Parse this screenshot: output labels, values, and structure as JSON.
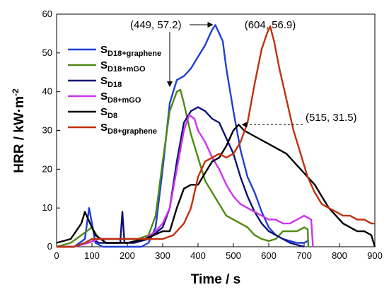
{
  "chart_data": {
    "type": "line",
    "xlabel": "Time / s",
    "ylabel_main": "HRR / kW",
    "ylabel_dot": "·",
    "ylabel_unit": "m",
    "ylabel_exp": "-2",
    "xlim": [
      0,
      900
    ],
    "ylim": [
      0,
      60
    ],
    "xticks": [
      0,
      100,
      200,
      300,
      400,
      500,
      600,
      700,
      800,
      900
    ],
    "yticks": [
      0,
      10,
      20,
      30,
      40,
      50,
      60
    ],
    "grid": false,
    "legend_position": "top-left",
    "series": [
      {
        "name_main": "S",
        "name_sub": "D18+graphene",
        "color": "#1f3fd6",
        "points": [
          [
            0,
            0
          ],
          [
            50,
            0
          ],
          [
            80,
            2
          ],
          [
            92,
            10
          ],
          [
            100,
            6
          ],
          [
            110,
            1
          ],
          [
            130,
            0
          ],
          [
            200,
            0
          ],
          [
            240,
            0
          ],
          [
            260,
            1
          ],
          [
            280,
            5
          ],
          [
            300,
            20
          ],
          [
            320,
            37
          ],
          [
            340,
            43
          ],
          [
            360,
            44
          ],
          [
            380,
            46
          ],
          [
            400,
            49
          ],
          [
            420,
            52
          ],
          [
            440,
            56
          ],
          [
            449,
            57.2
          ],
          [
            460,
            55
          ],
          [
            470,
            53
          ],
          [
            480,
            46
          ],
          [
            500,
            35
          ],
          [
            520,
            25
          ],
          [
            540,
            18
          ],
          [
            560,
            14
          ],
          [
            580,
            9
          ],
          [
            600,
            5
          ],
          [
            620,
            3
          ],
          [
            640,
            2
          ],
          [
            660,
            1.5
          ],
          [
            680,
            1
          ],
          [
            700,
            1
          ],
          [
            710,
            1.5
          ]
        ]
      },
      {
        "name_main": "S",
        "name_sub": "D18+mGO",
        "color": "#4f8a12",
        "points": [
          [
            0,
            0
          ],
          [
            40,
            1
          ],
          [
            70,
            3
          ],
          [
            100,
            5
          ],
          [
            120,
            2
          ],
          [
            150,
            2
          ],
          [
            200,
            2
          ],
          [
            230,
            2
          ],
          [
            260,
            3
          ],
          [
            280,
            8
          ],
          [
            300,
            22
          ],
          [
            320,
            35
          ],
          [
            340,
            40
          ],
          [
            350,
            40.5
          ],
          [
            360,
            37
          ],
          [
            380,
            29
          ],
          [
            400,
            23
          ],
          [
            420,
            17
          ],
          [
            440,
            14
          ],
          [
            460,
            11
          ],
          [
            480,
            8
          ],
          [
            500,
            7
          ],
          [
            520,
            6
          ],
          [
            540,
            5
          ],
          [
            560,
            3
          ],
          [
            580,
            2
          ],
          [
            600,
            1.5
          ],
          [
            620,
            2
          ],
          [
            640,
            4
          ],
          [
            660,
            4
          ],
          [
            680,
            4
          ],
          [
            700,
            5
          ],
          [
            710,
            4.5
          ],
          [
            712,
            0
          ]
        ]
      },
      {
        "name_main": "S",
        "name_sub": "D18",
        "color": "#0e1275",
        "points": [
          [
            0,
            0
          ],
          [
            50,
            0
          ],
          [
            80,
            1
          ],
          [
            100,
            2
          ],
          [
            120,
            1
          ],
          [
            180,
            1
          ],
          [
            186,
            9
          ],
          [
            192,
            1
          ],
          [
            220,
            1
          ],
          [
            260,
            2
          ],
          [
            300,
            5
          ],
          [
            320,
            10
          ],
          [
            340,
            22
          ],
          [
            360,
            32
          ],
          [
            380,
            35
          ],
          [
            400,
            36
          ],
          [
            420,
            35
          ],
          [
            440,
            33
          ],
          [
            460,
            32
          ],
          [
            480,
            28
          ],
          [
            500,
            24
          ],
          [
            520,
            18
          ],
          [
            540,
            13
          ],
          [
            560,
            9
          ],
          [
            580,
            6
          ],
          [
            600,
            4
          ],
          [
            620,
            3
          ],
          [
            640,
            2
          ],
          [
            660,
            1
          ],
          [
            680,
            0.5
          ],
          [
            700,
            0
          ]
        ]
      },
      {
        "name_main": "S",
        "name_sub": "D8+mGO",
        "color": "#cc33ee",
        "points": [
          [
            0,
            0
          ],
          [
            50,
            0
          ],
          [
            90,
            1
          ],
          [
            120,
            2
          ],
          [
            150,
            2
          ],
          [
            200,
            2
          ],
          [
            250,
            2
          ],
          [
            280,
            4
          ],
          [
            300,
            6
          ],
          [
            320,
            10
          ],
          [
            340,
            20
          ],
          [
            360,
            30
          ],
          [
            375,
            34
          ],
          [
            390,
            33
          ],
          [
            400,
            30
          ],
          [
            420,
            27
          ],
          [
            440,
            23
          ],
          [
            460,
            20
          ],
          [
            480,
            16
          ],
          [
            500,
            13
          ],
          [
            520,
            11
          ],
          [
            540,
            10
          ],
          [
            560,
            9
          ],
          [
            580,
            8
          ],
          [
            600,
            7
          ],
          [
            620,
            7
          ],
          [
            640,
            6
          ],
          [
            660,
            6
          ],
          [
            680,
            7
          ],
          [
            700,
            8
          ],
          [
            720,
            7
          ],
          [
            725,
            0
          ]
        ]
      },
      {
        "name_main": "S",
        "name_sub": "D8",
        "color": "#000000",
        "points": [
          [
            0,
            1
          ],
          [
            40,
            2
          ],
          [
            70,
            6
          ],
          [
            80,
            9
          ],
          [
            90,
            7
          ],
          [
            110,
            3
          ],
          [
            140,
            1
          ],
          [
            200,
            1
          ],
          [
            250,
            2
          ],
          [
            300,
            4
          ],
          [
            320,
            4
          ],
          [
            340,
            10
          ],
          [
            360,
            15
          ],
          [
            380,
            16
          ],
          [
            400,
            16
          ],
          [
            420,
            19
          ],
          [
            440,
            22
          ],
          [
            460,
            23
          ],
          [
            480,
            26
          ],
          [
            500,
            30
          ],
          [
            515,
            31.5
          ],
          [
            530,
            30
          ],
          [
            550,
            29
          ],
          [
            570,
            28
          ],
          [
            590,
            27
          ],
          [
            610,
            26
          ],
          [
            630,
            25
          ],
          [
            650,
            24
          ],
          [
            670,
            22
          ],
          [
            690,
            20
          ],
          [
            710,
            18
          ],
          [
            730,
            16
          ],
          [
            750,
            13
          ],
          [
            770,
            10
          ],
          [
            790,
            8
          ],
          [
            810,
            6
          ],
          [
            830,
            5
          ],
          [
            850,
            4
          ],
          [
            870,
            4
          ],
          [
            890,
            3
          ],
          [
            900,
            0
          ]
        ]
      },
      {
        "name_main": "S",
        "name_sub": "D8+graphene",
        "color": "#c1310c",
        "points": [
          [
            0,
            0
          ],
          [
            50,
            0
          ],
          [
            80,
            1
          ],
          [
            100,
            2
          ],
          [
            150,
            2
          ],
          [
            200,
            2
          ],
          [
            250,
            2
          ],
          [
            300,
            2
          ],
          [
            330,
            3
          ],
          [
            360,
            6
          ],
          [
            380,
            10
          ],
          [
            400,
            18
          ],
          [
            420,
            22
          ],
          [
            440,
            23
          ],
          [
            460,
            24
          ],
          [
            480,
            23
          ],
          [
            500,
            24
          ],
          [
            520,
            27
          ],
          [
            540,
            32
          ],
          [
            560,
            42
          ],
          [
            580,
            51
          ],
          [
            595,
            55
          ],
          [
            604,
            56.9
          ],
          [
            615,
            53
          ],
          [
            630,
            46
          ],
          [
            650,
            38
          ],
          [
            670,
            30
          ],
          [
            690,
            24
          ],
          [
            710,
            18
          ],
          [
            730,
            14
          ],
          [
            750,
            11
          ],
          [
            770,
            10
          ],
          [
            790,
            9
          ],
          [
            810,
            8
          ],
          [
            830,
            8
          ],
          [
            850,
            7
          ],
          [
            870,
            7
          ],
          [
            890,
            6
          ],
          [
            900,
            6
          ]
        ]
      }
    ],
    "annotations": [
      {
        "text": "(449, 57.2)",
        "x": 449,
        "y": 57.2
      },
      {
        "text": "(604, 56.9)",
        "x": 604,
        "y": 56.9
      },
      {
        "text": "(515, 31.5)",
        "x": 515,
        "y": 31.5
      }
    ]
  }
}
